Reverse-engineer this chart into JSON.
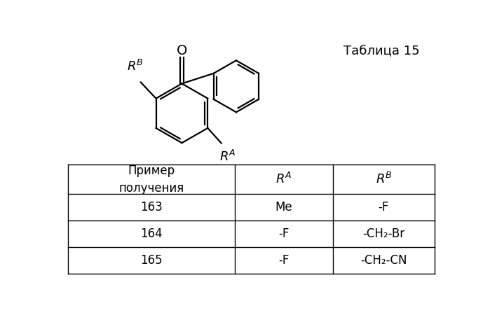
{
  "title": "Таблица 15",
  "table_rows": [
    [
      "163",
      "Me",
      "-F"
    ],
    [
      "164",
      "-F",
      "-CH₂-Br"
    ],
    [
      "165",
      "-F",
      "-CH₂-CN"
    ]
  ],
  "bg_color": "#ffffff",
  "text_color": "#000000",
  "line_color": "#000000",
  "title_fontsize": 13,
  "table_fontsize": 12,
  "structure_color": "#000000"
}
